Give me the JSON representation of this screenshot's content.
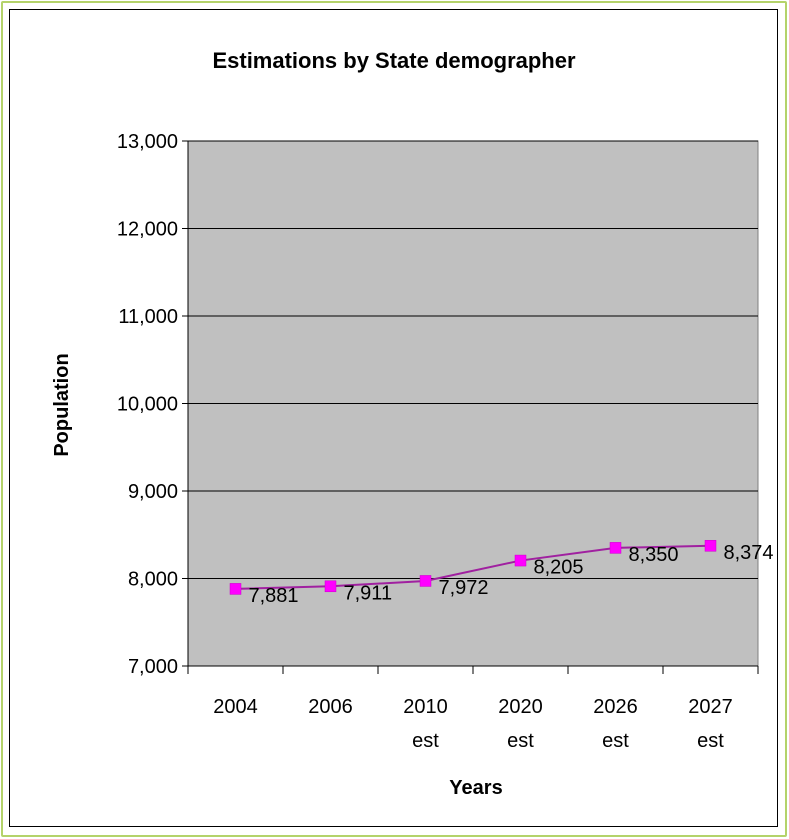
{
  "chart_data": {
    "type": "line",
    "title": "Estimations by State demographer",
    "xlabel": "Years",
    "ylabel": "Population",
    "categories": [
      [
        "2004"
      ],
      [
        "2006"
      ],
      [
        "2010",
        "est"
      ],
      [
        "2020",
        "est"
      ],
      [
        "2026",
        "est"
      ],
      [
        "2027",
        "est"
      ]
    ],
    "series": [
      {
        "values": [
          7881,
          7911,
          7972,
          8205,
          8350,
          8374
        ]
      }
    ],
    "data_labels": [
      "7,881",
      "7,911",
      "7,972",
      "8,205",
      "8,350",
      "8,374"
    ],
    "ylim": [
      7000,
      13000
    ],
    "yticks": [
      7000,
      8000,
      9000,
      10000,
      11000,
      12000,
      13000
    ],
    "ytick_labels": [
      "7,000",
      "8,000",
      "9,000",
      "10,000",
      "11,000",
      "12,000",
      "13,000"
    ],
    "grid": "horizontal",
    "legend": "none",
    "colors": {
      "plot_background": "#c0c0c0",
      "series": "#ff00ff",
      "series_line": "#a020a0",
      "frame": "#b4d36a"
    }
  }
}
